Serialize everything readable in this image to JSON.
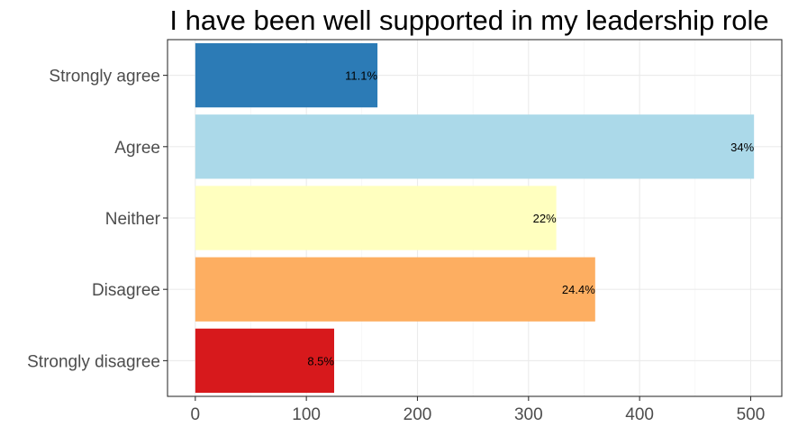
{
  "chart_data": {
    "type": "bar",
    "orientation": "horizontal",
    "title": "I have been well supported in my leadership role",
    "xlabel": "",
    "ylabel": "",
    "categories": [
      "Strongly agree",
      "Agree",
      "Neither",
      "Disagree",
      "Strongly disagree"
    ],
    "values": [
      164,
      503,
      325,
      360,
      125
    ],
    "data_labels": [
      "11.1%",
      "34%",
      "22%",
      "24.4%",
      "8.5%"
    ],
    "colors": [
      "#2c7bb6",
      "#abd9e9",
      "#ffffbf",
      "#fdae61",
      "#d7191c"
    ],
    "xlim": [
      -25,
      528
    ],
    "xticks": [
      0,
      100,
      200,
      300,
      400,
      500
    ],
    "xtick_labels": [
      "0",
      "100",
      "200",
      "300",
      "400",
      "500"
    ],
    "grid": true,
    "legend": "none"
  }
}
